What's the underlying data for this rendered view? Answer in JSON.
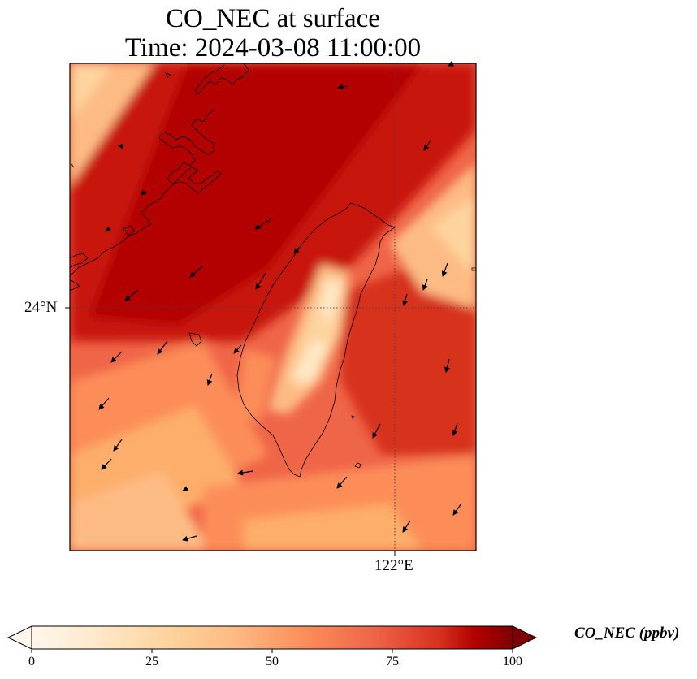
{
  "title": {
    "line1": "CO_NEC at surface",
    "line2": "Time: 2024-03-08 11:00:00"
  },
  "map": {
    "lat_tick_label": "24°N",
    "lon_tick_label": "122°E",
    "colormap": "OrRd",
    "gridlines": "dotted",
    "features": [
      "Taiwan coastline",
      "Chinese coastline (Fujian)",
      "wind vectors"
    ]
  },
  "colorbar": {
    "label": "CO_NEC (ppbv)",
    "ticks": [
      "0",
      "25",
      "50",
      "75",
      "100"
    ],
    "range": [
      0,
      100
    ],
    "extend": "both",
    "colors": [
      "#fff7ec",
      "#fdd49e",
      "#fc8d59",
      "#d7301f",
      "#b30000",
      "#7f0000"
    ]
  }
}
